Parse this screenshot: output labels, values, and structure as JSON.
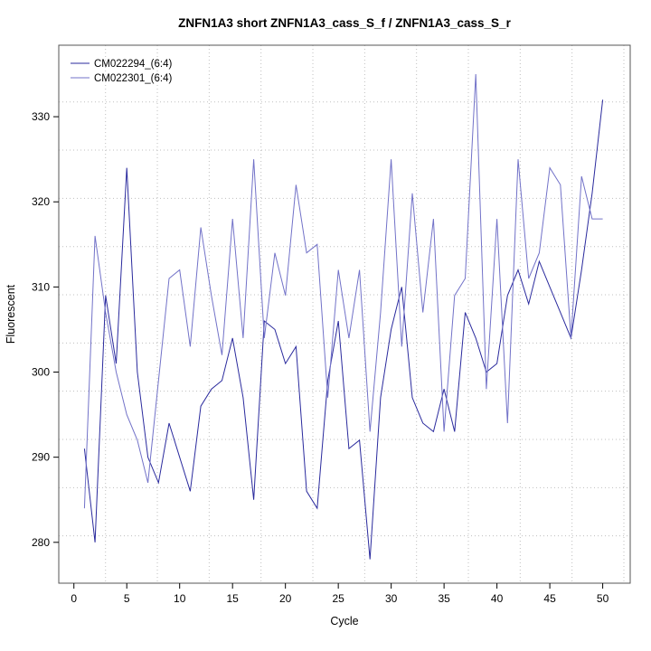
{
  "title": "ZNFN1A3 short ZNFN1A3_cass_S_f / ZNFN1A3_cass_S_r",
  "chart_data": {
    "type": "line",
    "title": "ZNFN1A3 short ZNFN1A3_cass_S_f / ZNFN1A3_cass_S_r",
    "xlabel": "Cycle",
    "ylabel": "Fluorescent",
    "legend_position": "top-left",
    "grid": true,
    "grid_color": "#bfbfbf",
    "axis_color": "#000000",
    "xlim": [
      -1.43,
      52.6
    ],
    "ylim": [
      275.2,
      338.4
    ],
    "x_ticks": [
      0,
      5,
      10,
      15,
      20,
      25,
      30,
      35,
      40,
      45,
      50
    ],
    "y_ticks": [
      280,
      290,
      300,
      310,
      320,
      330
    ],
    "x": [
      1,
      2,
      3,
      4,
      5,
      6,
      7,
      8,
      9,
      10,
      11,
      12,
      13,
      14,
      15,
      16,
      17,
      18,
      19,
      20,
      21,
      22,
      23,
      24,
      25,
      26,
      27,
      28,
      29,
      30,
      31,
      32,
      33,
      34,
      35,
      36,
      37,
      38,
      39,
      40,
      41,
      42,
      43,
      44,
      45,
      46,
      47,
      48,
      49,
      50
    ],
    "series": [
      {
        "name": "CM022294_(6:4)",
        "color": "#2a2a9d",
        "values": [
          291,
          280,
          309,
          301,
          324,
          300,
          290,
          287,
          294,
          290,
          286,
          296,
          298,
          299,
          304,
          297,
          285,
          306,
          305,
          301,
          303,
          286,
          284,
          299,
          306,
          291,
          292,
          278,
          297,
          305,
          310,
          297,
          294,
          293,
          298,
          293,
          307,
          304,
          300,
          301,
          309,
          312,
          308,
          313,
          310,
          307,
          304,
          312,
          321,
          332
        ]
      },
      {
        "name": "CM022301_(6:4)",
        "color": "#7272c8",
        "values": [
          284,
          316,
          307,
          300,
          295,
          292,
          287,
          299,
          311,
          312,
          303,
          317,
          309,
          302,
          318,
          304,
          325,
          304,
          314,
          309,
          322,
          314,
          315,
          297,
          312,
          304,
          312,
          293,
          307,
          325,
          303,
          321,
          307,
          318,
          293,
          309,
          311,
          335,
          298,
          318,
          294,
          325,
          311,
          314,
          324,
          322,
          304,
          323,
          318,
          318
        ]
      }
    ]
  }
}
